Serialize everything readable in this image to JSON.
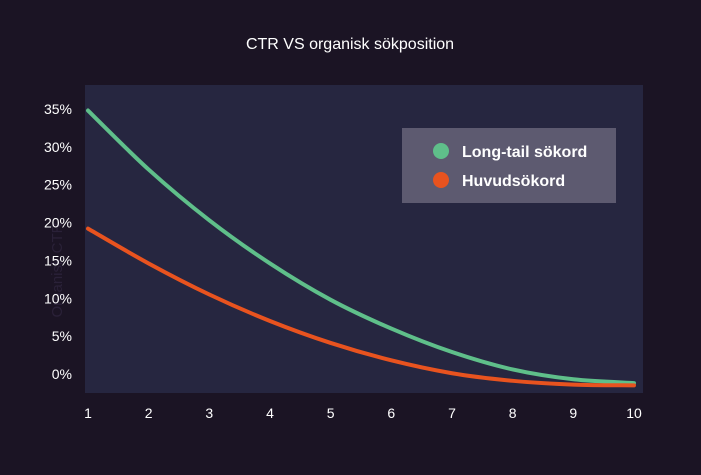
{
  "chart_data": {
    "type": "line",
    "title": "CTR VS organisk sökposition",
    "xlabel": "",
    "ylabel": "Organisk CTR",
    "x": [
      1,
      2,
      3,
      4,
      5,
      6,
      7,
      8,
      9,
      10
    ],
    "x_tick_labels": [
      "1",
      "2",
      "3",
      "4",
      "5",
      "6",
      "7",
      "8",
      "9",
      "10"
    ],
    "xlim": [
      1,
      10
    ],
    "ylim": [
      -1.5,
      37
    ],
    "y_ticks": [
      0,
      5,
      10,
      15,
      20,
      25,
      30,
      35
    ],
    "y_tick_labels": [
      "0%",
      "5%",
      "10%",
      "15%",
      "20%",
      "25%",
      "30%",
      "35%"
    ],
    "grid": false,
    "legend_position": "top-right",
    "series": [
      {
        "name": "Long-tail sökord",
        "color": "#5fbf8a",
        "values": [
          34.8,
          27.0,
          20.3,
          14.6,
          9.8,
          6.0,
          2.9,
          0.6,
          -0.7,
          -1.2
        ]
      },
      {
        "name": "Huvudsökord",
        "color": "#e8531f",
        "values": [
          19.2,
          14.6,
          10.5,
          7.0,
          4.1,
          1.8,
          0.1,
          -0.9,
          -1.4,
          -1.5
        ]
      }
    ]
  }
}
